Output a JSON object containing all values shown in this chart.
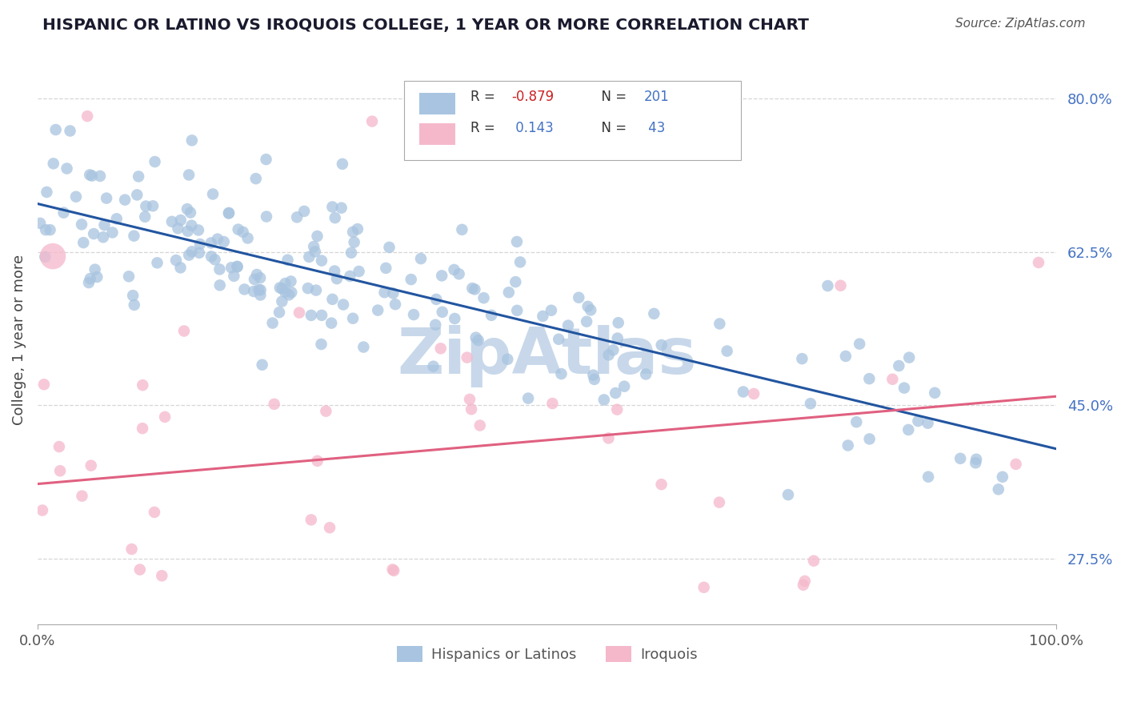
{
  "title": "HISPANIC OR LATINO VS IROQUOIS COLLEGE, 1 YEAR OR MORE CORRELATION CHART",
  "source_text": "Source: ZipAtlas.com",
  "ylabel": "College, 1 year or more",
  "xlim": [
    0,
    100
  ],
  "ylim": [
    20,
    85
  ],
  "yticks_right": [
    27.5,
    45.0,
    62.5,
    80.0
  ],
  "ytick_labels_right": [
    "27.5%",
    "45.0%",
    "62.5%",
    "80.0%"
  ],
  "xtick_labels": [
    "0.0%",
    "100.0%"
  ],
  "legend_r_blue": "-0.879",
  "legend_n_blue": "201",
  "legend_r_pink": "0.143",
  "legend_n_pink": "43",
  "legend_label_blue": "Hispanics or Latinos",
  "legend_label_pink": "Iroquois",
  "blue_color": "#a8c4e0",
  "blue_line_color": "#2255a0",
  "pink_color": "#f5b8cb",
  "pink_line_color": "#e06080",
  "watermark": "ZipAtlas",
  "watermark_color": "#c8d8ea",
  "grid_color": "#cccccc",
  "title_color": "#1a1a2e",
  "axis_label_color": "#444444",
  "right_tick_color": "#4472c4",
  "legend_text_color": "#4472c4",
  "legend_r_blue_color": "#cc2222",
  "legend_r_pink_color": "#4472c4",
  "source_color": "#555555",
  "blue_trend_slope": -0.28,
  "blue_trend_intercept": 68,
  "pink_trend_slope": 0.1,
  "pink_trend_intercept": 36
}
